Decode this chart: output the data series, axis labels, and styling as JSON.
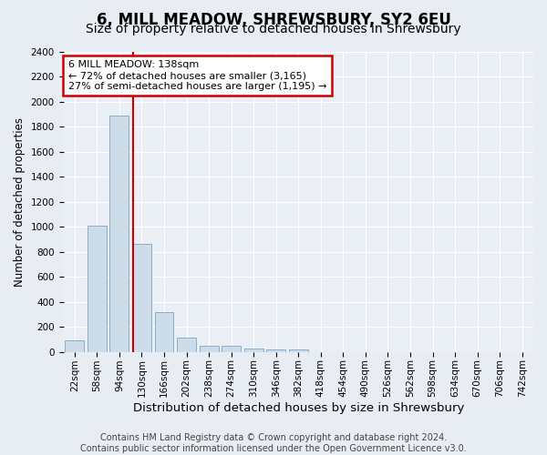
{
  "title": "6, MILL MEADOW, SHREWSBURY, SY2 6EU",
  "subtitle": "Size of property relative to detached houses in Shrewsbury",
  "xlabel": "Distribution of detached houses by size in Shrewsbury",
  "ylabel": "Number of detached properties",
  "categories": [
    "22sqm",
    "58sqm",
    "94sqm",
    "130sqm",
    "166sqm",
    "202sqm",
    "238sqm",
    "274sqm",
    "310sqm",
    "346sqm",
    "382sqm",
    "418sqm",
    "454sqm",
    "490sqm",
    "526sqm",
    "562sqm",
    "598sqm",
    "634sqm",
    "670sqm",
    "706sqm",
    "742sqm"
  ],
  "values": [
    90,
    1010,
    1890,
    860,
    320,
    115,
    52,
    45,
    30,
    20,
    20,
    0,
    0,
    0,
    0,
    0,
    0,
    0,
    0,
    0,
    0
  ],
  "bar_color": "#ccdce9",
  "bar_edge_color": "#89aec8",
  "vline_x": 2.6,
  "vline_color": "#cc0000",
  "annotation_line1": "6 MILL MEADOW: 138sqm",
  "annotation_line2": "← 72% of detached houses are smaller (3,165)",
  "annotation_line3": "27% of semi-detached houses are larger (1,195) →",
  "annotation_box_color": "#ffffff",
  "annotation_box_edge_color": "#cc0000",
  "ylim": [
    0,
    2400
  ],
  "yticks": [
    0,
    200,
    400,
    600,
    800,
    1000,
    1200,
    1400,
    1600,
    1800,
    2000,
    2200,
    2400
  ],
  "footer_line1": "Contains HM Land Registry data © Crown copyright and database right 2024.",
  "footer_line2": "Contains public sector information licensed under the Open Government Licence v3.0.",
  "bg_color": "#e8edf3",
  "plot_bg_color": "#eaeff5",
  "title_fontsize": 12,
  "subtitle_fontsize": 10,
  "xlabel_fontsize": 9.5,
  "ylabel_fontsize": 8.5,
  "tick_fontsize": 7.5,
  "annot_fontsize": 8,
  "footer_fontsize": 7
}
